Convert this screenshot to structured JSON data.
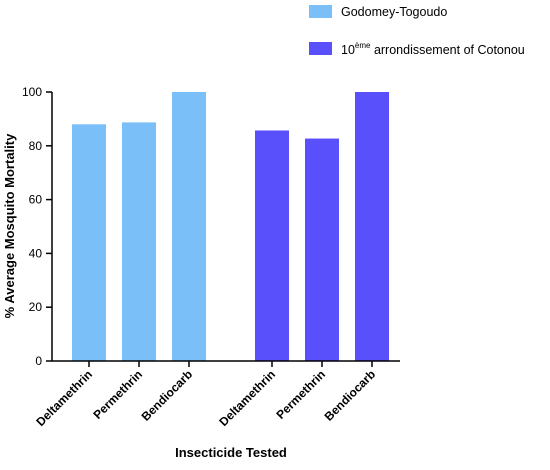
{
  "chart_data": {
    "type": "bar",
    "xlabel": "Insecticide Tested",
    "ylabel": "% Average Mosquito Mortality",
    "ylim": [
      0,
      100
    ],
    "yticks": [
      0,
      20,
      40,
      60,
      80,
      100
    ],
    "legend_position": "top-right",
    "series": [
      {
        "name": "Godomey-Togoudo",
        "color": "#7ABFF8",
        "categories": [
          "Deltamethrin",
          "Permethrin",
          "Bendiocarb"
        ],
        "values": [
          88,
          88.7,
          100
        ]
      },
      {
        "name_base": "10",
        "name_sup": "ème",
        "name_rest": " arrondissement of Cotonou",
        "color": "#5A50FB",
        "categories": [
          "Deltamethrin",
          "Permethrin",
          "Bendiocarb"
        ],
        "values": [
          85.7,
          82.7,
          100
        ]
      }
    ]
  }
}
